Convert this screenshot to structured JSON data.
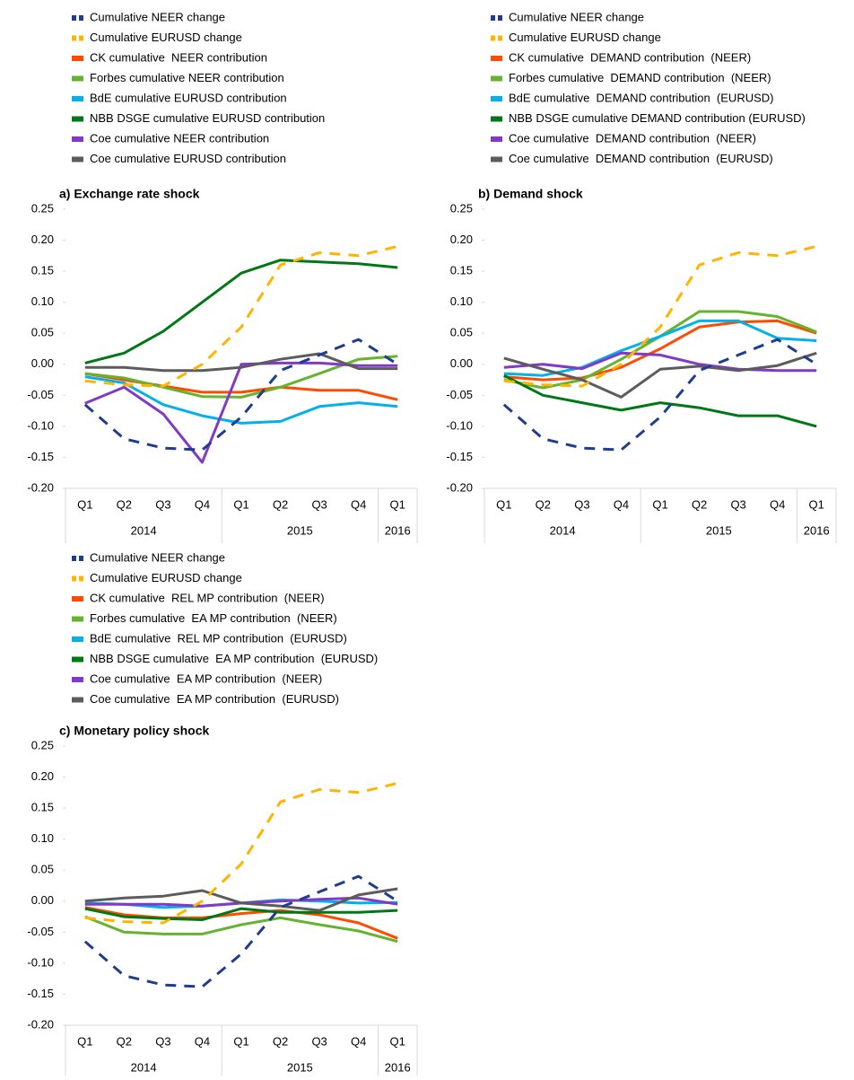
{
  "chart_data": [
    {
      "type": "line",
      "title": "a) Exchange rate shock",
      "categories": [
        "Q1",
        "Q2",
        "Q3",
        "Q4",
        "Q1",
        "Q2",
        "Q3",
        "Q4",
        "Q1"
      ],
      "years": [
        "2014",
        "2014",
        "2014",
        "2014",
        "2015",
        "2015",
        "2015",
        "2015",
        "2016"
      ],
      "ylim": [
        -0.2,
        0.25
      ],
      "yticks": [
        {
          "value": -0.2,
          "label": "-0.20"
        },
        -0.15,
        {
          "value": -0.1,
          "label": "-0.10"
        },
        -0.05,
        {
          "value": 0,
          "label": "0.00"
        },
        0.05,
        {
          "value": 0.1,
          "label": "0.10"
        },
        0.15,
        {
          "value": 0.2,
          "label": "0.20"
        },
        0.25
      ],
      "series": [
        {
          "name": "Cumulative NEER change",
          "color": "#1f3d8f",
          "dashed": true,
          "values": [
            -0.065,
            -0.12,
            -0.135,
            -0.138,
            -0.085,
            -0.01,
            0.015,
            0.04,
            0.0
          ]
        },
        {
          "name": "Cumulative EURUSD change",
          "color": "#ffb400",
          "dashed": true,
          "values": [
            -0.027,
            -0.033,
            -0.035,
            0.0,
            0.06,
            0.16,
            0.18,
            0.175,
            0.19
          ]
        },
        {
          "name": "CK cumulative  NEER contribution",
          "color": "#ff4b00",
          "dashed": false,
          "values": [
            -0.015,
            -0.025,
            -0.035,
            -0.045,
            -0.045,
            -0.037,
            -0.042,
            -0.042,
            -0.057
          ]
        },
        {
          "name": "Forbes cumulative NEER contribution",
          "color": "#65b32e",
          "dashed": false,
          "values": [
            -0.015,
            -0.022,
            -0.037,
            -0.052,
            -0.053,
            -0.037,
            -0.015,
            0.008,
            0.013
          ]
        },
        {
          "name": "BdE cumulative EURUSD contribution",
          "color": "#00b1ea",
          "dashed": false,
          "values": [
            -0.02,
            -0.03,
            -0.065,
            -0.083,
            -0.095,
            -0.092,
            -0.068,
            -0.062,
            -0.068
          ]
        },
        {
          "name": "NBB DSGE cumulative EURUSD contribution",
          "color": "#007816",
          "dashed": false,
          "values": [
            0.002,
            0.018,
            0.053,
            0.1,
            0.147,
            0.168,
            0.165,
            0.162,
            0.156
          ]
        },
        {
          "name": "Coe cumulative NEER contribution",
          "color": "#8139c6",
          "dashed": false,
          "values": [
            -0.063,
            -0.037,
            -0.08,
            -0.158,
            0.0,
            0.002,
            0.002,
            -0.002,
            -0.002
          ]
        },
        {
          "name": "Coe cumulative EURUSD contribution",
          "color": "#5c5c5c",
          "dashed": false,
          "values": [
            -0.005,
            -0.005,
            -0.01,
            -0.01,
            -0.005,
            0.008,
            0.017,
            -0.007,
            -0.007
          ]
        }
      ]
    },
    {
      "type": "line",
      "title": "b) Demand shock",
      "categories": [
        "Q1",
        "Q2",
        "Q3",
        "Q4",
        "Q1",
        "Q2",
        "Q3",
        "Q4",
        "Q1"
      ],
      "years": [
        "2014",
        "2014",
        "2014",
        "2014",
        "2015",
        "2015",
        "2015",
        "2015",
        "2016"
      ],
      "ylim": [
        -0.2,
        0.25
      ],
      "yticks": [
        {
          "value": -0.2,
          "label": "-0.20"
        },
        -0.15,
        {
          "value": -0.1,
          "label": "-0.10"
        },
        -0.05,
        {
          "value": 0,
          "label": "0.00"
        },
        0.05,
        {
          "value": 0.1,
          "label": "0.10"
        },
        0.15,
        {
          "value": 0.2,
          "label": "0.20"
        },
        0.25
      ],
      "series": [
        {
          "name": "Cumulative NEER change",
          "color": "#1f3d8f",
          "dashed": true,
          "values": [
            -0.065,
            -0.12,
            -0.135,
            -0.138,
            -0.085,
            -0.01,
            0.015,
            0.04,
            0.0
          ]
        },
        {
          "name": "Cumulative EURUSD change",
          "color": "#ffb400",
          "dashed": true,
          "values": [
            -0.027,
            -0.033,
            -0.035,
            0.0,
            0.06,
            0.16,
            0.18,
            0.175,
            0.19
          ]
        },
        {
          "name": "CK cumulative  DEMAND contribution  (NEER)",
          "color": "#ff4b00",
          "dashed": false,
          "values": [
            -0.02,
            -0.025,
            -0.022,
            -0.005,
            0.025,
            0.06,
            0.068,
            0.07,
            0.05
          ]
        },
        {
          "name": "Forbes cumulative  DEMAND contribution  (NEER)",
          "color": "#65b32e",
          "dashed": false,
          "values": [
            -0.025,
            -0.038,
            -0.025,
            0.008,
            0.045,
            0.085,
            0.085,
            0.077,
            0.052
          ]
        },
        {
          "name": "BdE cumulative  DEMAND contribution  (EURUSD)",
          "color": "#00b1ea",
          "dashed": false,
          "values": [
            -0.015,
            -0.018,
            -0.005,
            0.022,
            0.045,
            0.07,
            0.07,
            0.042,
            0.038
          ]
        },
        {
          "name": "NBB DSGE cumulative DEMAND contribution (EURUSD)",
          "color": "#007816",
          "dashed": false,
          "values": [
            -0.018,
            -0.05,
            -0.062,
            -0.074,
            -0.062,
            -0.07,
            -0.083,
            -0.083,
            -0.1
          ]
        },
        {
          "name": "Coe cumulative  DEMAND contribution  (NEER)",
          "color": "#8139c6",
          "dashed": false,
          "values": [
            -0.005,
            0.0,
            -0.007,
            0.018,
            0.015,
            0.0,
            -0.008,
            -0.01,
            -0.01
          ]
        },
        {
          "name": "Coe cumulative  DEMAND contribution  (EURUSD)",
          "color": "#5c5c5c",
          "dashed": false,
          "values": [
            0.01,
            -0.008,
            -0.025,
            -0.053,
            -0.008,
            -0.003,
            -0.01,
            -0.002,
            0.018
          ]
        }
      ]
    },
    {
      "type": "line",
      "title": "c) Monetary policy shock",
      "categories": [
        "Q1",
        "Q2",
        "Q3",
        "Q4",
        "Q1",
        "Q2",
        "Q3",
        "Q4",
        "Q1"
      ],
      "years": [
        "2014",
        "2014",
        "2014",
        "2014",
        "2015",
        "2015",
        "2015",
        "2015",
        "2016"
      ],
      "ylim": [
        -0.2,
        0.25
      ],
      "yticks": [
        {
          "value": -0.2,
          "label": "-0.20"
        },
        -0.15,
        {
          "value": -0.1,
          "label": "-0.10"
        },
        -0.05,
        {
          "value": 0,
          "label": "0.00"
        },
        0.05,
        {
          "value": 0.1,
          "label": "0.10"
        },
        0.15,
        {
          "value": 0.2,
          "label": "0.20"
        },
        0.25
      ],
      "series": [
        {
          "name": "Cumulative NEER change",
          "color": "#1f3d8f",
          "dashed": true,
          "values": [
            -0.065,
            -0.12,
            -0.135,
            -0.138,
            -0.085,
            -0.01,
            0.015,
            0.04,
            0.0
          ]
        },
        {
          "name": "Cumulative EURUSD change",
          "color": "#ffb400",
          "dashed": true,
          "values": [
            -0.027,
            -0.033,
            -0.035,
            0.0,
            0.06,
            0.16,
            0.18,
            0.175,
            0.19
          ]
        },
        {
          "name": "CK cumulative  REL MP contribution  (NEER)",
          "color": "#ff4b00",
          "dashed": false,
          "values": [
            -0.01,
            -0.022,
            -0.027,
            -0.027,
            -0.02,
            -0.015,
            -0.022,
            -0.035,
            -0.06
          ]
        },
        {
          "name": "Forbes cumulative  EA MP contribution  (NEER)",
          "color": "#65b32e",
          "dashed": false,
          "values": [
            -0.025,
            -0.05,
            -0.053,
            -0.053,
            -0.038,
            -0.027,
            -0.038,
            -0.048,
            -0.065
          ]
        },
        {
          "name": "BdE cumulative  REL MP contribution  (EURUSD)",
          "color": "#00b1ea",
          "dashed": false,
          "values": [
            -0.003,
            -0.005,
            -0.01,
            -0.008,
            -0.003,
            0.002,
            0.0,
            -0.003,
            -0.002
          ]
        },
        {
          "name": "NBB DSGE cumulative  EA MP contribution  (EURUSD)",
          "color": "#007816",
          "dashed": false,
          "values": [
            -0.012,
            -0.025,
            -0.028,
            -0.03,
            -0.012,
            -0.018,
            -0.018,
            -0.018,
            -0.015
          ]
        },
        {
          "name": "Coe cumulative  EA MP contribution  (NEER)",
          "color": "#8139c6",
          "dashed": false,
          "values": [
            -0.005,
            -0.005,
            -0.005,
            -0.008,
            -0.003,
            0.0,
            0.003,
            0.005,
            -0.005
          ]
        },
        {
          "name": "Coe cumulative  EA MP contribution  (EURUSD)",
          "color": "#5c5c5c",
          "dashed": false,
          "values": [
            0.0,
            0.005,
            0.008,
            0.017,
            -0.003,
            -0.008,
            -0.015,
            0.01,
            0.02
          ]
        }
      ]
    }
  ]
}
